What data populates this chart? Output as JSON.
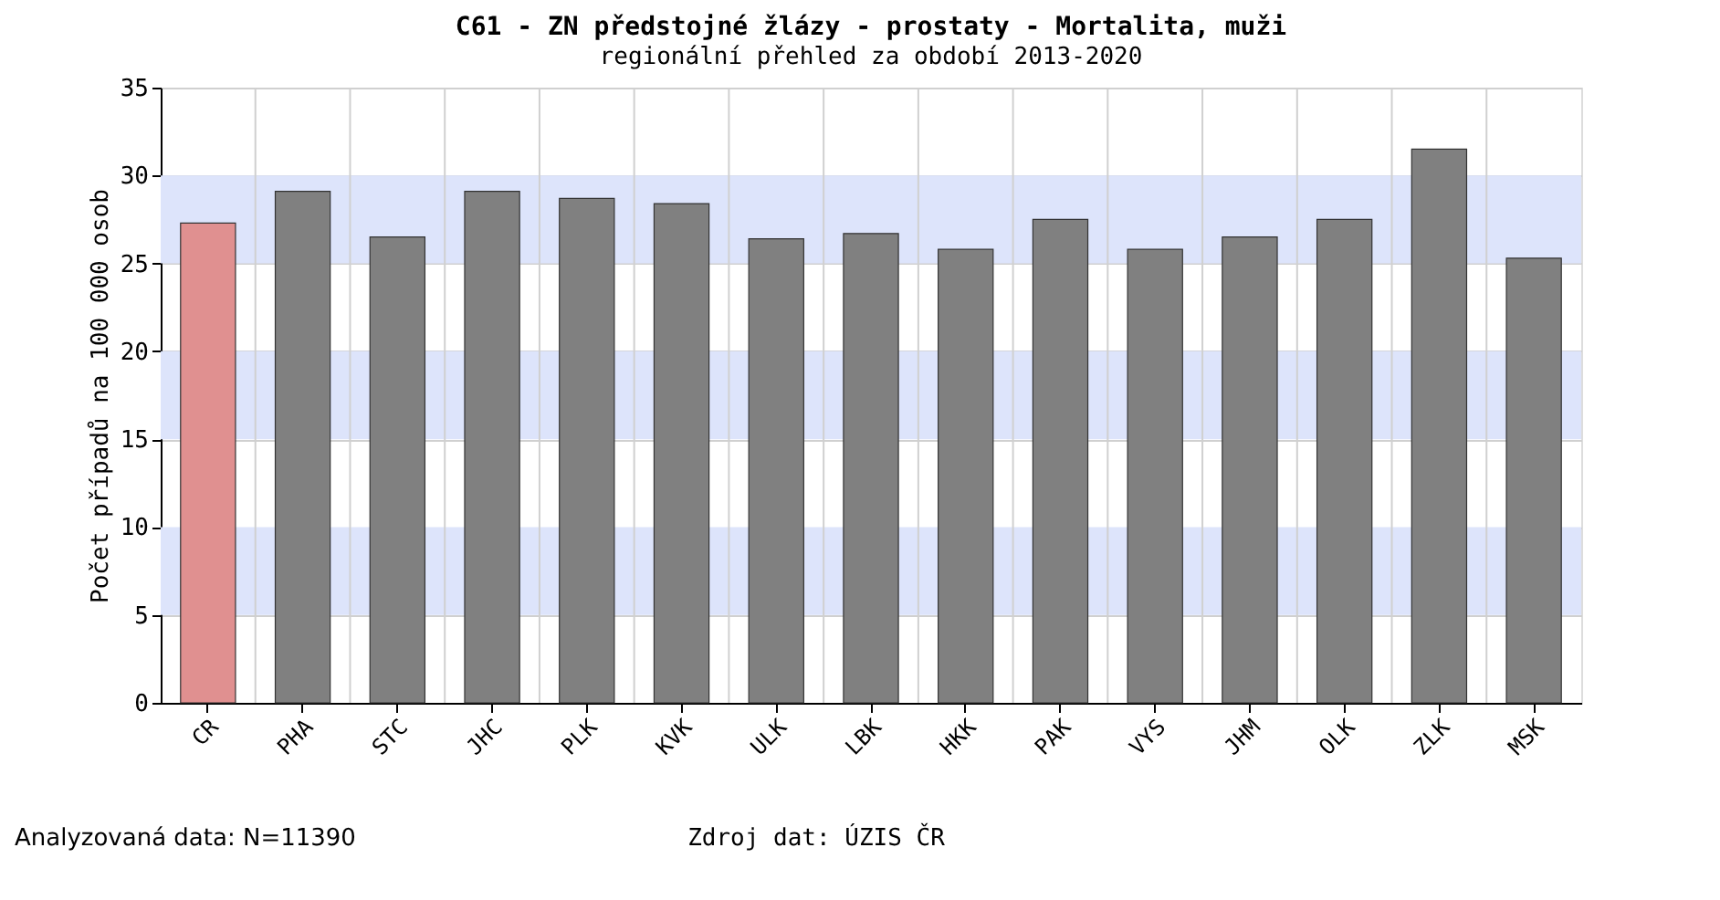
{
  "chart_data": {
    "type": "bar",
    "title": "C61 - ZN předstojné žlázy - prostaty - Mortalita, muži",
    "subtitle": "regionální přehled za období 2013-2020",
    "ylabel": "Počet případů na 100 000 osob",
    "categories": [
      "CR",
      "PHA",
      "STC",
      "JHC",
      "PLK",
      "KVK",
      "ULK",
      "LBK",
      "HKK",
      "PAK",
      "VYS",
      "JHM",
      "OLK",
      "ZLK",
      "MSK"
    ],
    "values": [
      27.3,
      29.1,
      26.5,
      29.1,
      28.7,
      28.4,
      26.4,
      26.7,
      25.8,
      27.5,
      25.8,
      26.5,
      27.5,
      31.5,
      25.3
    ],
    "colors": [
      "#e09090",
      "#808080",
      "#808080",
      "#808080",
      "#808080",
      "#808080",
      "#808080",
      "#808080",
      "#808080",
      "#808080",
      "#808080",
      "#808080",
      "#808080",
      "#808080",
      "#808080"
    ],
    "ylim": [
      0,
      35
    ],
    "yticks": [
      0,
      5,
      10,
      15,
      20,
      25,
      30,
      35
    ],
    "grid": true,
    "bands": [
      {
        "axis": "y",
        "from": 5,
        "to": 10,
        "color": "#dde4fb"
      },
      {
        "axis": "y",
        "from": 15,
        "to": 20,
        "color": "#dde4fb"
      },
      {
        "axis": "y",
        "from": 25,
        "to": 30,
        "color": "#dde4fb"
      }
    ],
    "annotations": [
      "Analyzovaná data: N=11390",
      "Zdroj dat: ÚZIS ČR"
    ]
  }
}
